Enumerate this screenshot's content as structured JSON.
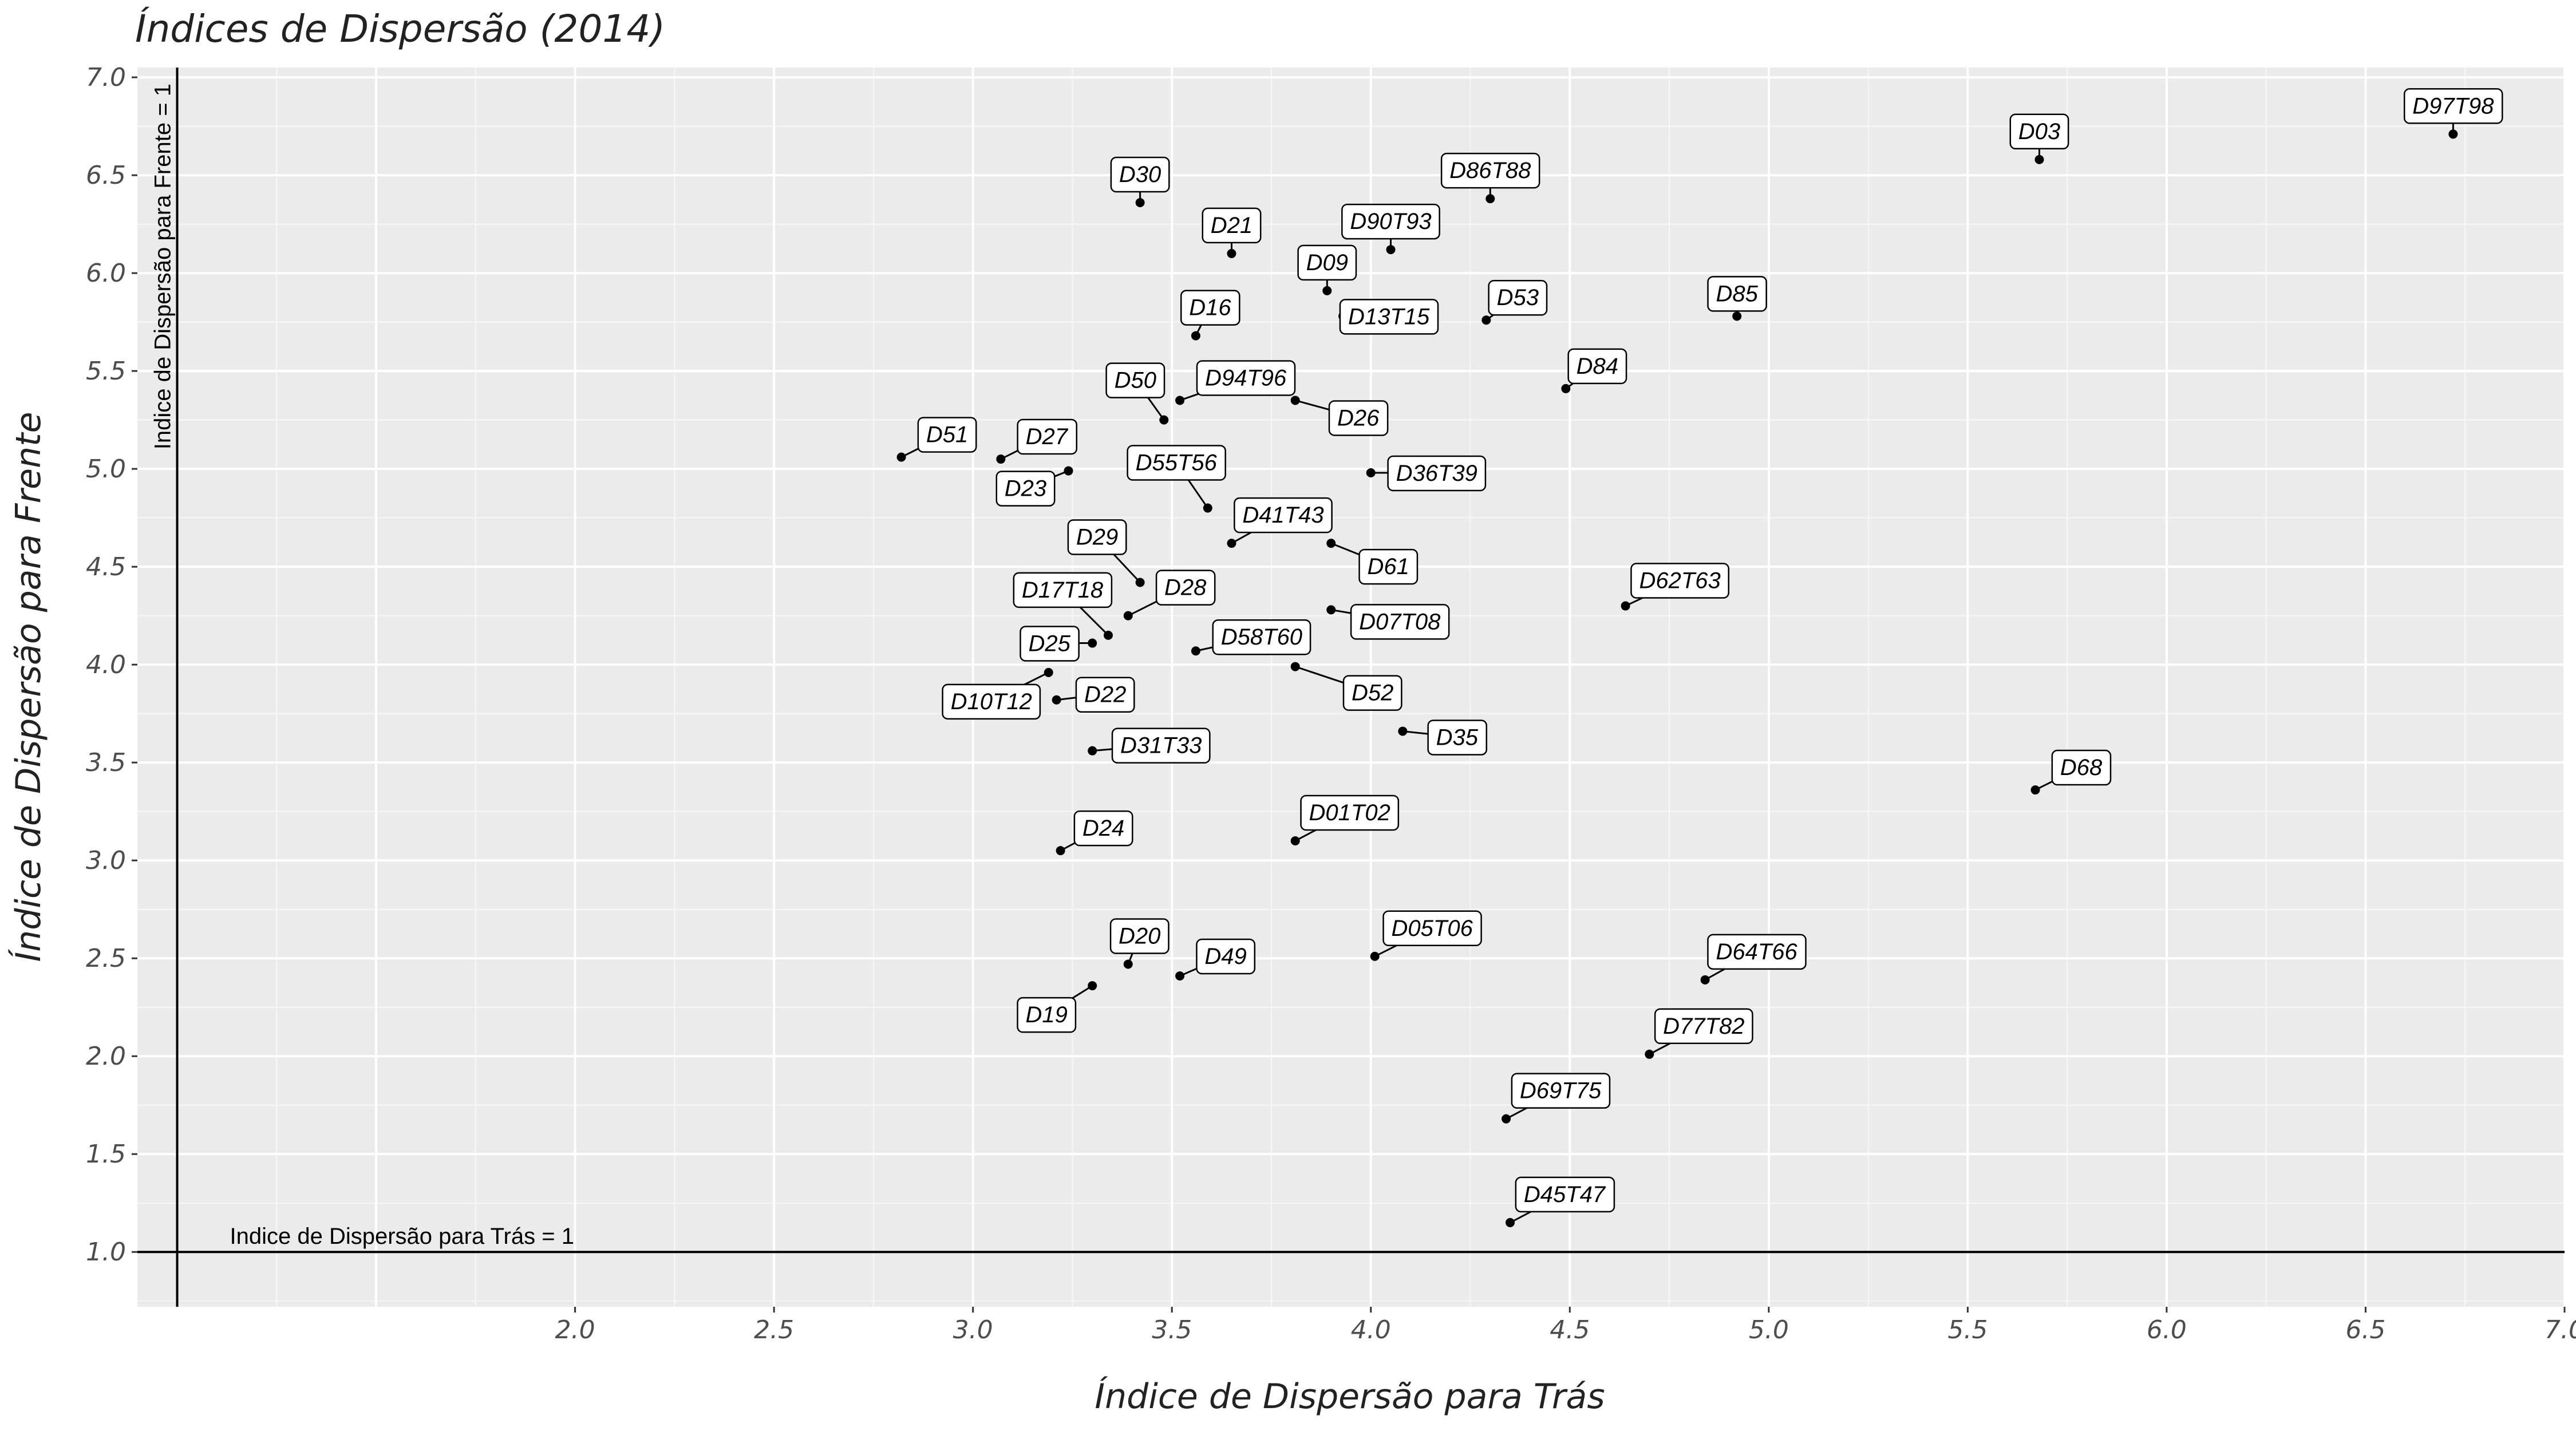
{
  "chart_data": {
    "type": "scatter",
    "title": "Índices de Dispersão (2014)",
    "xlabel": "Índice de Dispersão para Trás",
    "ylabel": "Índice de Dispersão para Frente",
    "xlim": [
      0.9,
      7.0
    ],
    "ylim": [
      0.72,
      7.05
    ],
    "xticks": [
      "2.0",
      "2.5",
      "3.0",
      "3.5",
      "4.0",
      "4.5",
      "5.0",
      "5.5",
      "6.0",
      "6.5",
      "7.0"
    ],
    "yticks": [
      "1.0",
      "1.5",
      "2.0",
      "2.5",
      "3.0",
      "3.5",
      "4.0",
      "4.5",
      "5.0",
      "5.5",
      "6.0",
      "6.5",
      "7.0"
    ],
    "grid": true,
    "reference_lines": {
      "vertical": {
        "x": 1.0,
        "label": "Indice de Dispersão para Frente = 1"
      },
      "horizontal": {
        "y": 1.0,
        "label": "Indice de Dispersão para Trás = 1"
      }
    },
    "colors": {
      "panel": "#EBEBEB",
      "grid": "#FFFFFF",
      "point": "#000000",
      "label_fill": "#FFFFFF"
    },
    "points": [
      {
        "label": "D97T98",
        "x": 6.72,
        "y": 6.71
      },
      {
        "label": "D03",
        "x": 5.68,
        "y": 6.58
      },
      {
        "label": "D86T88",
        "x": 4.3,
        "y": 6.38
      },
      {
        "label": "D30",
        "x": 3.42,
        "y": 6.36
      },
      {
        "label": "D90T93",
        "x": 4.05,
        "y": 6.12
      },
      {
        "label": "D21",
        "x": 3.65,
        "y": 6.1
      },
      {
        "label": "D09",
        "x": 3.89,
        "y": 5.91
      },
      {
        "label": "D85",
        "x": 4.92,
        "y": 5.78
      },
      {
        "label": "D13T15",
        "x": 3.93,
        "y": 5.78
      },
      {
        "label": "D53",
        "x": 4.29,
        "y": 5.76
      },
      {
        "label": "D16",
        "x": 3.56,
        "y": 5.68
      },
      {
        "label": "D84",
        "x": 4.49,
        "y": 5.41
      },
      {
        "label": "D94T96",
        "x": 3.52,
        "y": 5.35
      },
      {
        "label": "D26",
        "x": 3.81,
        "y": 5.35
      },
      {
        "label": "D50",
        "x": 3.48,
        "y": 5.25
      },
      {
        "label": "D51",
        "x": 2.82,
        "y": 5.06
      },
      {
        "label": "D27",
        "x": 3.07,
        "y": 5.05
      },
      {
        "label": "D23",
        "x": 3.24,
        "y": 4.99
      },
      {
        "label": "D36T39",
        "x": 4.0,
        "y": 4.98
      },
      {
        "label": "D55T56",
        "x": 3.59,
        "y": 4.8
      },
      {
        "label": "D41T43",
        "x": 3.65,
        "y": 4.62
      },
      {
        "label": "D61",
        "x": 3.9,
        "y": 4.62
      },
      {
        "label": "D29",
        "x": 3.42,
        "y": 4.42
      },
      {
        "label": "D62T63",
        "x": 4.64,
        "y": 4.3
      },
      {
        "label": "D07T08",
        "x": 3.9,
        "y": 4.28
      },
      {
        "label": "D28",
        "x": 3.39,
        "y": 4.25
      },
      {
        "label": "D17T18",
        "x": 3.34,
        "y": 4.15
      },
      {
        "label": "D25",
        "x": 3.3,
        "y": 4.11
      },
      {
        "label": "D58T60",
        "x": 3.56,
        "y": 4.07
      },
      {
        "label": "D52",
        "x": 3.81,
        "y": 3.99
      },
      {
        "label": "D10T12",
        "x": 3.19,
        "y": 3.96
      },
      {
        "label": "D22",
        "x": 3.21,
        "y": 3.82
      },
      {
        "label": "D35",
        "x": 4.08,
        "y": 3.66
      },
      {
        "label": "D31T33",
        "x": 3.3,
        "y": 3.56
      },
      {
        "label": "D68",
        "x": 5.67,
        "y": 3.36
      },
      {
        "label": "D01T02",
        "x": 3.81,
        "y": 3.1
      },
      {
        "label": "D24",
        "x": 3.22,
        "y": 3.05
      },
      {
        "label": "D05T06",
        "x": 4.01,
        "y": 2.51
      },
      {
        "label": "D20",
        "x": 3.39,
        "y": 2.47
      },
      {
        "label": "D49",
        "x": 3.52,
        "y": 2.41
      },
      {
        "label": "D64T66",
        "x": 4.84,
        "y": 2.39
      },
      {
        "label": "D19",
        "x": 3.3,
        "y": 2.36
      },
      {
        "label": "D77T82",
        "x": 4.7,
        "y": 2.01
      },
      {
        "label": "D69T75",
        "x": 4.34,
        "y": 1.68
      },
      {
        "label": "D45T47",
        "x": 4.35,
        "y": 1.15
      }
    ]
  }
}
